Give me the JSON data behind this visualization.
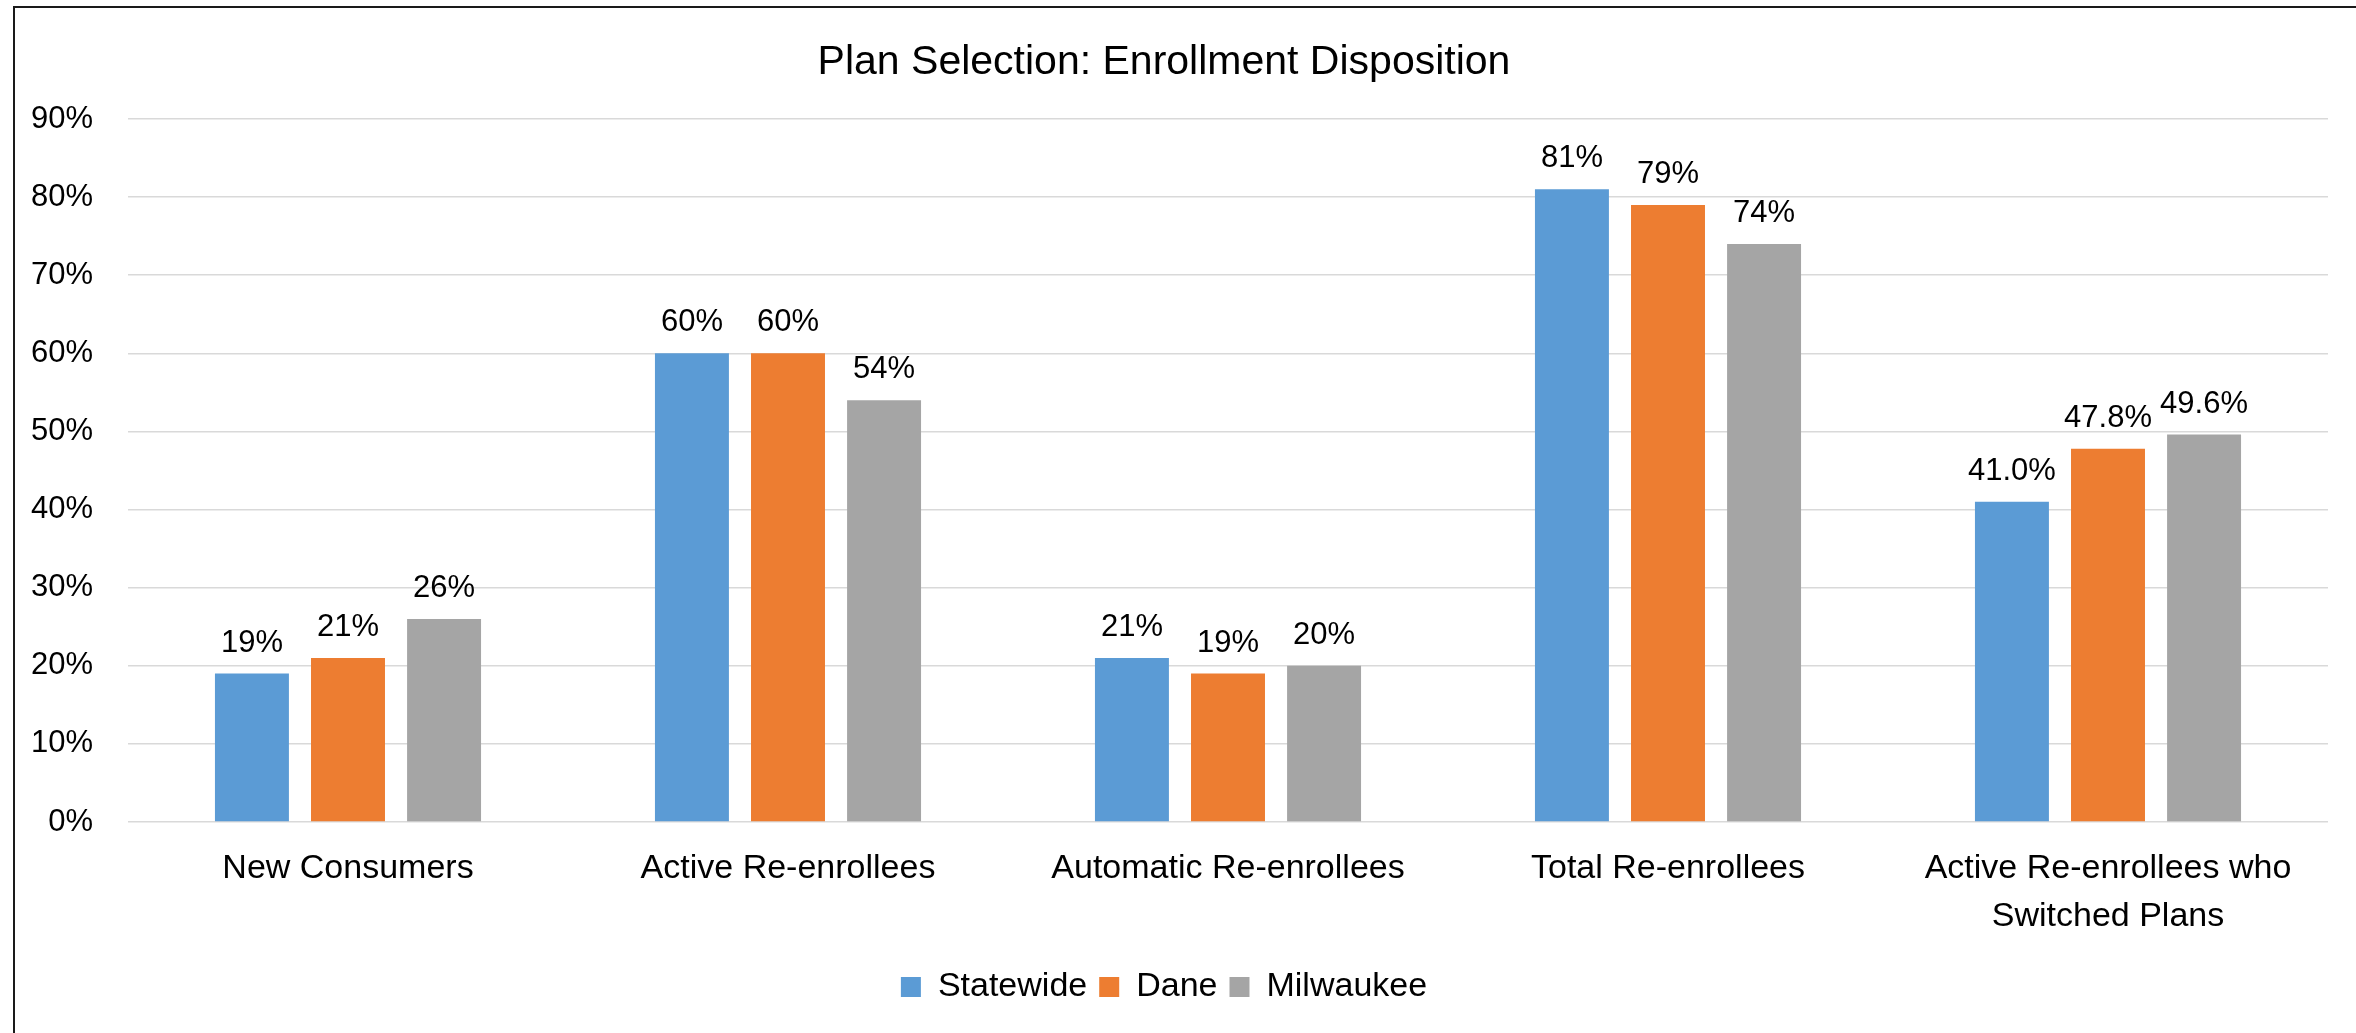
{
  "chart_data": {
    "type": "bar",
    "title": "Plan Selection: Enrollment Disposition",
    "categories": [
      "New Consumers",
      "Active Re-enrollees",
      "Automatic Re-enrollees",
      "Total Re-enrollees",
      "Active Re-enrollees who Switched Plans"
    ],
    "series": [
      {
        "name": "Statewide",
        "color": "#5b9bd5",
        "values": [
          19,
          60,
          21,
          81,
          41.0
        ],
        "value_labels": [
          "19%",
          "60%",
          "21%",
          "81%",
          "41.0%"
        ]
      },
      {
        "name": "Dane",
        "color": "#ed7d31",
        "values": [
          21,
          60,
          19,
          79,
          47.8
        ],
        "value_labels": [
          "21%",
          "60%",
          "19%",
          "79%",
          "47.8%"
        ]
      },
      {
        "name": "Milwaukee",
        "color": "#a5a5a5",
        "values": [
          26,
          54,
          20,
          74,
          49.6
        ],
        "value_labels": [
          "26%",
          "54%",
          "20%",
          "74%",
          "49.6%"
        ]
      }
    ],
    "ylim": [
      0,
      90
    ],
    "yticks": [
      {
        "value": 0,
        "label": "0%"
      },
      {
        "value": 10,
        "label": "10%"
      },
      {
        "value": 20,
        "label": "20%"
      },
      {
        "value": 30,
        "label": "30%"
      },
      {
        "value": 40,
        "label": "40%"
      },
      {
        "value": 50,
        "label": "50%"
      },
      {
        "value": 60,
        "label": "60%"
      },
      {
        "value": 70,
        "label": "70%"
      },
      {
        "value": 80,
        "label": "80%"
      },
      {
        "value": 90,
        "label": "90%"
      }
    ],
    "grid": "y",
    "legend": "bottom"
  }
}
